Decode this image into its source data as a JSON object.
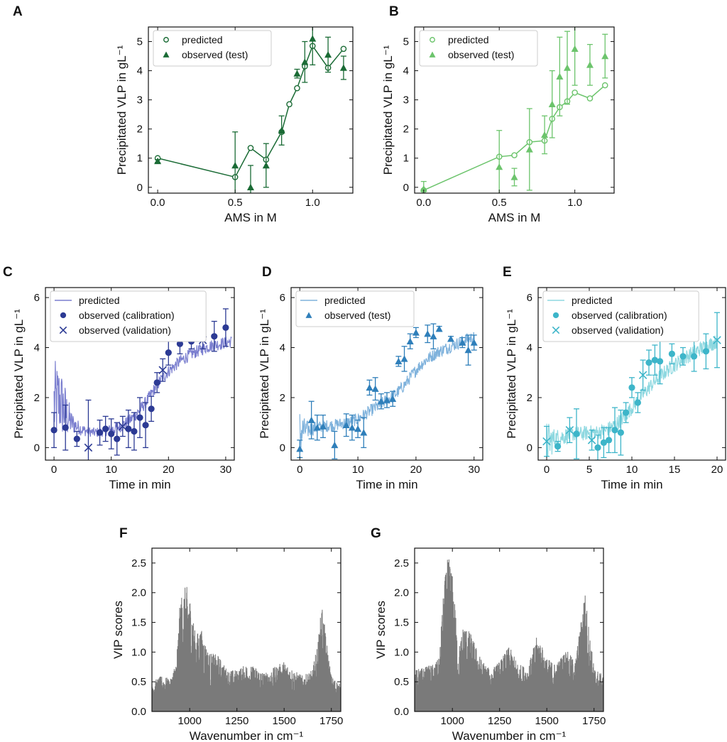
{
  "figure": {
    "panels": [
      "A",
      "B",
      "C",
      "D",
      "E",
      "F",
      "G"
    ]
  },
  "chart_data": [
    {
      "id": "A",
      "panel_label": "A",
      "type": "line",
      "xlabel": "AMS in M",
      "ylabel": "Precipitated VLP in gL⁻¹",
      "xlim": [
        -0.06,
        1.26
      ],
      "ylim": [
        -0.2,
        5.5
      ],
      "xticks": [
        0,
        0.5,
        1.0
      ],
      "xtick_labels": [
        "0.0",
        "0.5",
        "1.0"
      ],
      "yticks": [
        0,
        1,
        2,
        3,
        4,
        5
      ],
      "ytick_labels": [
        "0",
        "1",
        "2",
        "3",
        "4",
        "5"
      ],
      "color": "#1a6b35",
      "legend_position": "top-left",
      "series": [
        {
          "name": "predicted",
          "kind": "line-open-circle",
          "x": [
            0,
            0.5,
            0.6,
            0.7,
            0.8,
            0.85,
            0.9,
            0.95,
            1.0,
            1.1,
            1.2
          ],
          "y": [
            1.0,
            0.35,
            1.35,
            0.95,
            1.9,
            2.85,
            3.4,
            4.15,
            4.85,
            4.1,
            4.75
          ]
        },
        {
          "name": "observed (test)",
          "kind": "triangle",
          "x": [
            0,
            0.5,
            0.6,
            0.7,
            0.8,
            0.9,
            0.95,
            1.0,
            1.1,
            1.2
          ],
          "y": [
            0.9,
            0.75,
            0.0,
            0.75,
            1.95,
            3.9,
            4.3,
            5.1,
            4.55,
            4.1
          ],
          "err": [
            0.05,
            1.15,
            0.75,
            0.75,
            0.5,
            0.15,
            0.7,
            0.9,
            0.6,
            0.4
          ]
        }
      ]
    },
    {
      "id": "B",
      "panel_label": "B",
      "type": "line",
      "xlabel": "AMS in M",
      "ylabel": "Precipitated VLP in gL⁻¹",
      "xlim": [
        -0.06,
        1.26
      ],
      "ylim": [
        -0.2,
        5.5
      ],
      "xticks": [
        0,
        0.5,
        1.0
      ],
      "xtick_labels": [
        "0.0",
        "0.5",
        "1.0"
      ],
      "yticks": [
        0,
        1,
        2,
        3,
        4,
        5
      ],
      "ytick_labels": [
        "0",
        "1",
        "2",
        "3",
        "4",
        "5"
      ],
      "color": "#6cc46c",
      "legend_position": "top-left",
      "series": [
        {
          "name": "predicted",
          "kind": "line-open-circle",
          "x": [
            0,
            0.5,
            0.6,
            0.7,
            0.8,
            0.85,
            0.9,
            0.95,
            1.0,
            1.1,
            1.2
          ],
          "y": [
            -0.1,
            1.05,
            1.1,
            1.55,
            1.6,
            2.35,
            2.75,
            2.95,
            3.25,
            3.05,
            3.5
          ]
        },
        {
          "name": "observed (test)",
          "kind": "triangle",
          "x": [
            0,
            0.5,
            0.6,
            0.7,
            0.8,
            0.85,
            0.9,
            0.95,
            1.0,
            1.1,
            1.2
          ],
          "y": [
            -0.05,
            0.7,
            0.35,
            1.3,
            1.8,
            2.85,
            3.8,
            4.1,
            4.75,
            4.2,
            4.5
          ],
          "err": [
            0.25,
            1.25,
            0.3,
            1.4,
            0.65,
            1.15,
            1.35,
            1.25,
            1.25,
            0.7,
            0.75
          ]
        }
      ]
    },
    {
      "id": "C",
      "panel_label": "C",
      "type": "line",
      "xlabel": "Time in min",
      "ylabel": "Precipitated VLP in gL⁻¹",
      "xlim": [
        -1.5,
        31.5
      ],
      "ylim": [
        -0.5,
        6.4
      ],
      "xticks": [
        0,
        10,
        20,
        30
      ],
      "xtick_labels": [
        "0",
        "10",
        "20",
        "30"
      ],
      "yticks": [
        0,
        2,
        4,
        6
      ],
      "ytick_labels": [
        "0",
        "2",
        "4",
        "6"
      ],
      "color": "#2c3a94",
      "line_color": "#7b7fcf",
      "legend_position": "top-left",
      "predicted_curve": {
        "x": [
          0,
          1,
          2,
          3,
          4,
          5,
          6,
          7,
          8,
          9,
          10,
          11,
          12,
          13,
          14,
          15,
          16,
          17,
          18,
          19,
          20,
          21,
          22,
          23,
          24,
          25,
          26,
          27,
          28,
          29,
          30,
          31
        ],
        "y": [
          1.7,
          1.9,
          1.4,
          1.0,
          0.85,
          0.7,
          0.65,
          0.6,
          0.62,
          0.66,
          0.72,
          0.8,
          0.9,
          1.05,
          1.25,
          1.5,
          1.8,
          2.15,
          2.5,
          2.8,
          3.05,
          3.25,
          3.45,
          3.6,
          3.75,
          3.85,
          3.95,
          4.05,
          4.1,
          4.15,
          4.2,
          4.25
        ],
        "noise": [
          1.8,
          1.5,
          1.1,
          0.5,
          0.3,
          0.25,
          0.2,
          0.2,
          0.2,
          0.2,
          0.25,
          0.25,
          0.25,
          0.25,
          0.25,
          0.25,
          0.25,
          0.25,
          0.25,
          0.25,
          0.25,
          0.25,
          0.25,
          0.25,
          0.25,
          0.25,
          0.25,
          0.25,
          0.25,
          0.25,
          0.25,
          0.25
        ]
      },
      "series": [
        {
          "name": "predicted",
          "kind": "line"
        },
        {
          "name": "observed (calibration)",
          "kind": "filled-circle",
          "x": [
            0,
            2,
            4,
            8,
            9,
            10,
            11,
            13,
            14,
            15,
            16,
            17,
            18,
            20,
            22,
            24,
            28,
            30
          ],
          "y": [
            0.7,
            0.8,
            0.35,
            0.6,
            0.75,
            0.55,
            0.35,
            0.75,
            0.65,
            1.2,
            0.9,
            1.55,
            2.6,
            3.8,
            4.15,
            4.25,
            4.45,
            4.8
          ],
          "err": [
            0.7,
            0.9,
            0.3,
            0.5,
            0.5,
            0.6,
            0.65,
            0.75,
            0.75,
            0.8,
            0.9,
            0.5,
            0.4,
            0.5,
            0.4,
            0.3,
            0.6,
            0.75
          ]
        },
        {
          "name": "observed (validation)",
          "kind": "cross",
          "x": [
            6,
            12,
            19,
            26
          ],
          "y": [
            0.0,
            0.85,
            3.1,
            4.3
          ],
          "err": [
            1.9,
            0.4,
            0.45,
            0.35
          ]
        }
      ]
    },
    {
      "id": "D",
      "panel_label": "D",
      "type": "line",
      "xlabel": "Time in min",
      "ylabel": "Precipitated VLP in gL⁻¹",
      "xlim": [
        -1.5,
        31.5
      ],
      "ylim": [
        -0.5,
        6.4
      ],
      "xticks": [
        0,
        10,
        20,
        30
      ],
      "xtick_labels": [
        "0",
        "10",
        "20",
        "30"
      ],
      "yticks": [
        0,
        2,
        4,
        6
      ],
      "ytick_labels": [
        "0",
        "2",
        "4",
        "6"
      ],
      "color": "#2f7fba",
      "line_color": "#7fb2dc",
      "legend_position": "top-left",
      "predicted_curve": {
        "x": [
          0,
          1,
          2,
          3,
          4,
          5,
          6,
          7,
          8,
          9,
          10,
          11,
          12,
          13,
          14,
          15,
          16,
          17,
          18,
          19,
          20,
          21,
          22,
          23,
          24,
          25,
          26,
          27,
          28,
          29,
          30
        ],
        "y": [
          0.6,
          0.7,
          0.75,
          0.8,
          0.85,
          0.88,
          0.9,
          0.95,
          1.0,
          1.05,
          1.15,
          1.3,
          1.45,
          1.6,
          1.75,
          1.9,
          2.05,
          2.25,
          2.5,
          2.8,
          3.1,
          3.35,
          3.55,
          3.7,
          3.85,
          3.95,
          4.05,
          4.15,
          4.25,
          4.35,
          4.4
        ],
        "noise": [
          1.0,
          0.4,
          0.3,
          0.25,
          0.25,
          0.25,
          0.25,
          0.25,
          0.25,
          0.25,
          0.25,
          0.25,
          0.25,
          0.25,
          0.25,
          0.25,
          0.25,
          0.25,
          0.25,
          0.25,
          0.25,
          0.25,
          0.25,
          0.25,
          0.25,
          0.25,
          0.25,
          0.25,
          0.25,
          0.25,
          0.25
        ]
      },
      "series": [
        {
          "name": "predicted",
          "kind": "line"
        },
        {
          "name": "observed (test)",
          "kind": "triangle",
          "x": [
            0,
            2,
            3,
            4,
            6,
            8,
            9,
            10,
            11,
            12,
            13,
            14,
            15,
            16,
            17,
            18,
            19,
            20,
            22,
            23,
            24,
            26,
            28,
            29,
            30
          ],
          "y": [
            -0.05,
            1.1,
            0.8,
            0.85,
            0.1,
            0.9,
            0.8,
            0.75,
            0.6,
            2.4,
            2.35,
            1.85,
            1.9,
            1.95,
            3.45,
            3.55,
            4.25,
            4.6,
            4.55,
            4.45,
            4.75,
            4.35,
            4.2,
            3.9,
            4.2
          ],
          "err": [
            0.35,
            0.75,
            0.5,
            0.45,
            0.55,
            0.45,
            0.5,
            0.35,
            0.6,
            0.3,
            0.45,
            0.3,
            0.3,
            0.3,
            0.2,
            0.5,
            0.3,
            0.2,
            0.35,
            0.5,
            0.1,
            0.1,
            0.2,
            0.6,
            0.3
          ]
        }
      ]
    },
    {
      "id": "E",
      "panel_label": "E",
      "type": "line",
      "xlabel": "Time in min",
      "ylabel": "Precipitated VLP in gL⁻¹",
      "xlim": [
        -1.0,
        21.0
      ],
      "ylim": [
        -0.5,
        6.4
      ],
      "xticks": [
        0,
        5,
        10,
        15,
        20
      ],
      "xtick_labels": [
        "0",
        "5",
        "10",
        "15",
        "20"
      ],
      "yticks": [
        0,
        2,
        4,
        6
      ],
      "ytick_labels": [
        "0",
        "2",
        "4",
        "6"
      ],
      "color": "#3db5c9",
      "line_color": "#8ed8e0",
      "legend_position": "top-left",
      "predicted_curve": {
        "x": [
          0,
          1,
          2,
          3,
          4,
          5,
          6,
          7,
          8,
          9,
          10,
          11,
          12,
          13,
          14,
          15,
          16,
          17,
          18,
          19,
          20
        ],
        "y": [
          0.2,
          0.35,
          0.45,
          0.55,
          0.55,
          0.6,
          0.6,
          0.7,
          0.9,
          1.2,
          1.6,
          2.0,
          2.4,
          2.75,
          3.05,
          3.3,
          3.55,
          3.75,
          3.95,
          4.1,
          4.25
        ],
        "noise": [
          0.9,
          0.4,
          0.35,
          0.3,
          0.3,
          0.3,
          0.3,
          0.3,
          0.3,
          0.3,
          0.3,
          0.3,
          0.3,
          0.3,
          0.3,
          0.3,
          0.3,
          0.3,
          0.3,
          0.3,
          0.3
        ]
      },
      "series": [
        {
          "name": "predicted",
          "kind": "line"
        },
        {
          "name": "observed (calibration)",
          "kind": "filled-circle",
          "x": [
            1.3,
            3.5,
            6.0,
            6.7,
            7.3,
            8.0,
            8.7,
            9.3,
            10.0,
            10.7,
            12.0,
            12.7,
            13.3,
            14.7,
            16.0,
            17.3,
            18.7
          ],
          "y": [
            0.05,
            0.55,
            0.0,
            0.2,
            0.3,
            0.7,
            0.6,
            1.4,
            2.4,
            1.8,
            3.4,
            3.5,
            3.45,
            3.75,
            3.65,
            3.65,
            3.85
          ],
          "err": [
            0.2,
            1.0,
            0.5,
            0.6,
            0.5,
            0.9,
            0.9,
            0.4,
            0.4,
            0.4,
            0.5,
            0.6,
            0.9,
            0.4,
            0.35,
            0.6,
            0.7
          ]
        },
        {
          "name": "observed (validation)",
          "kind": "cross",
          "x": [
            0.0,
            2.7,
            5.3,
            11.3,
            20.0
          ],
          "y": [
            0.25,
            0.7,
            0.3,
            2.9,
            4.3
          ],
          "err": [
            0.6,
            0.5,
            0.4,
            0.6,
            1.1
          ]
        }
      ]
    },
    {
      "id": "F",
      "panel_label": "F",
      "type": "area",
      "xlabel": "Wavenumber in cm⁻¹",
      "ylabel": "VIP scores",
      "xlim": [
        800,
        1800
      ],
      "ylim": [
        0,
        2.75
      ],
      "xticks": [
        1000,
        1250,
        1500,
        1750
      ],
      "xtick_labels": [
        "1000",
        "1250",
        "1500",
        "1750"
      ],
      "yticks": [
        0,
        0.5,
        1.0,
        1.5,
        2.0,
        2.5
      ],
      "ytick_labels": [
        "0.0",
        "0.5",
        "1.0",
        "1.5",
        "2.0",
        "2.5"
      ],
      "color": "#7a7a7a",
      "envelope": {
        "x": [
          800,
          850,
          900,
          930,
          950,
          970,
          990,
          1010,
          1030,
          1060,
          1100,
          1150,
          1200,
          1250,
          1300,
          1350,
          1400,
          1450,
          1500,
          1550,
          1600,
          1650,
          1680,
          1700,
          1720,
          1750,
          1800
        ],
        "y": [
          0.5,
          0.6,
          0.55,
          0.9,
          1.9,
          2.1,
          2.1,
          1.8,
          1.3,
          1.4,
          1.0,
          0.95,
          0.7,
          0.7,
          0.8,
          0.75,
          0.65,
          0.75,
          0.85,
          0.7,
          0.6,
          0.7,
          1.2,
          1.85,
          1.3,
          0.6,
          0.45
        ]
      }
    },
    {
      "id": "G",
      "panel_label": "G",
      "type": "area",
      "xlabel": "Wavenumber in cm⁻¹",
      "ylabel": "VIP scores",
      "xlim": [
        800,
        1800
      ],
      "ylim": [
        0,
        2.75
      ],
      "xticks": [
        1000,
        1250,
        1500,
        1750
      ],
      "xtick_labels": [
        "1000",
        "1250",
        "1500",
        "1750"
      ],
      "yticks": [
        0,
        0.5,
        1.0,
        1.5,
        2.0,
        2.5
      ],
      "ytick_labels": [
        "0.0",
        "0.5",
        "1.0",
        "1.5",
        "2.0",
        "2.5"
      ],
      "color": "#7a7a7a",
      "envelope": {
        "x": [
          800,
          850,
          900,
          930,
          950,
          970,
          990,
          1010,
          1030,
          1060,
          1100,
          1150,
          1200,
          1250,
          1300,
          1350,
          1400,
          1450,
          1500,
          1550,
          1600,
          1650,
          1680,
          1700,
          1720,
          1750,
          1800
        ],
        "y": [
          0.7,
          0.75,
          0.8,
          0.9,
          1.9,
          2.55,
          2.6,
          2.0,
          1.0,
          1.5,
          1.3,
          0.9,
          0.7,
          0.85,
          1.1,
          0.8,
          0.75,
          1.3,
          0.9,
          0.8,
          1.05,
          0.85,
          1.5,
          2.1,
          1.5,
          0.75,
          0.6
        ]
      }
    }
  ]
}
